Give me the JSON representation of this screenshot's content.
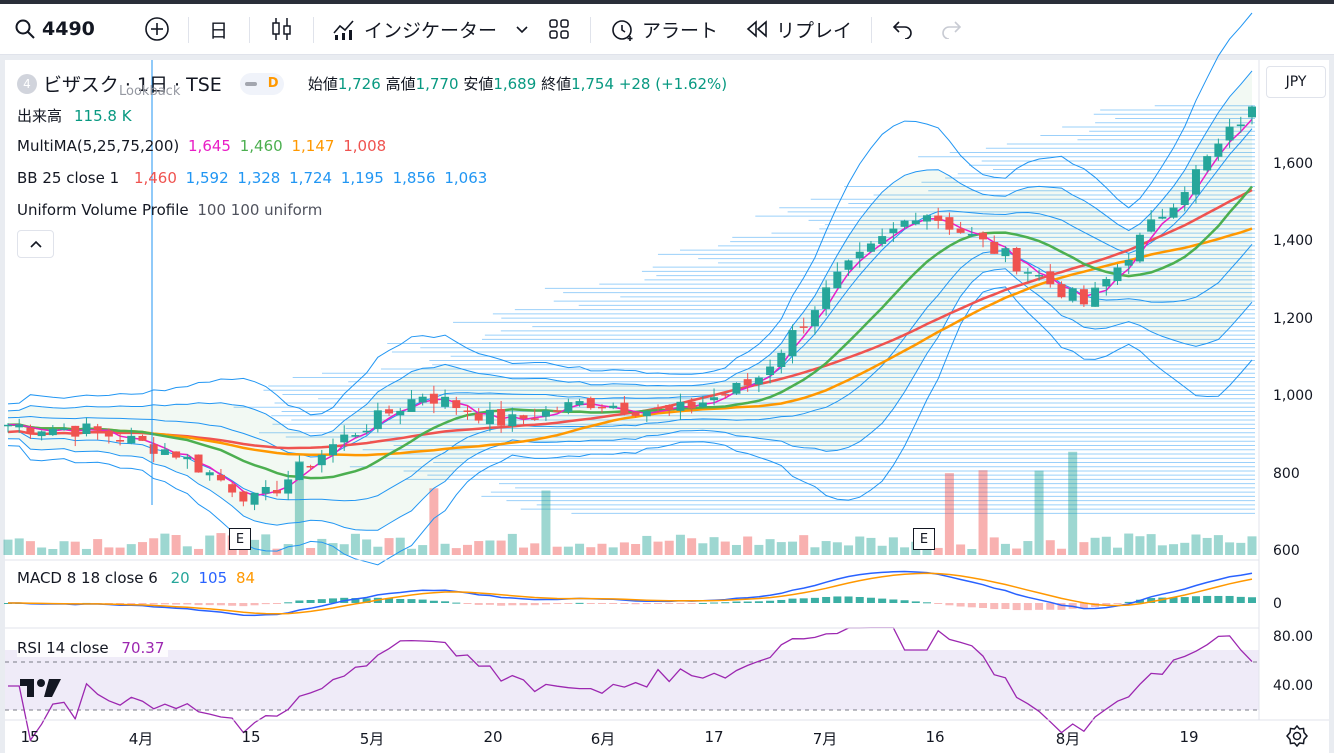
{
  "toolbar": {
    "symbol": "4490",
    "interval": "日",
    "indicators_label": "インジケーター",
    "alert_label": "アラート",
    "replay_label": "リプレイ"
  },
  "legend": {
    "badge": "4",
    "title": "ビザスク · 1日 · TSE",
    "lookback": "Lookback",
    "d_badge": "D",
    "open_label": "始値",
    "open": "1,726",
    "high_label": "高値",
    "high": "1,770",
    "low_label": "安値",
    "low": "1,689",
    "close_label": "終値",
    "close": "1,754",
    "change": "+28 (+1.62%)",
    "volume_label": "出来高",
    "volume": "115.8 K",
    "multima_label": "MultiMA(5,25,75,200)",
    "ma5": "1,645",
    "ma25": "1,460",
    "ma75": "1,147",
    "ma200": "1,008",
    "bb_label": "BB 25 close 1",
    "bb1": "1,460",
    "bb2": "1,592",
    "bb3": "1,328",
    "bb4": "1,724",
    "bb5": "1,195",
    "bb6": "1,856",
    "bb7": "1,063",
    "uvp_label": "Uniform Volume Profile",
    "uvp_params": "100 100 uniform",
    "collapse_icon": "chevron-up-icon"
  },
  "macd": {
    "label": "MACD 8 18 close 6",
    "v1": "20",
    "v2": "105",
    "v3": "84"
  },
  "rsi": {
    "label": "RSI 14 close",
    "value": "70.37"
  },
  "currency": "JPY",
  "price_axis": [
    "1,600",
    "1,400",
    "1,200",
    "1,000",
    "800",
    "600"
  ],
  "macd_axis": "0",
  "rsi_axis": [
    "80.00",
    "40.00"
  ],
  "x_axis": [
    "15",
    "4月",
    "15",
    "5月",
    "20",
    "6月",
    "17",
    "7月",
    "16",
    "8月",
    "19"
  ],
  "earnings_marker": "E",
  "colors": {
    "up": "#26a69a",
    "down": "#ef5350",
    "ma5": "#e91ec6",
    "ma25": "#4caf50",
    "ma75": "#ff9800",
    "ma200": "#ef5350",
    "bb": "#2196f3",
    "rsi": "#9c27b0"
  },
  "chart_data": {
    "type": "candlestick",
    "title": "ビザスク · 1日 · TSE",
    "ylim": [
      600,
      1800
    ],
    "last_bar": {
      "open": 1726,
      "high": 1770,
      "low": 1689,
      "close": 1754,
      "volume": "115.8 K"
    },
    "trend_close": [
      {
        "x": "3月15日",
        "y": 930
      },
      {
        "x": "4月1日",
        "y": 915
      },
      {
        "x": "4月15日",
        "y": 860
      },
      {
        "x": "5月1日",
        "y": 730
      },
      {
        "x": "5月20日",
        "y": 890
      },
      {
        "x": "5月28日",
        "y": 1010
      },
      {
        "x": "6月1日",
        "y": 935
      },
      {
        "x": "6月17日",
        "y": 990
      },
      {
        "x": "7月1日",
        "y": 960
      },
      {
        "x": "7月16日",
        "y": 1040
      },
      {
        "x": "7月20日",
        "y": 1310
      },
      {
        "x": "7月29日",
        "y": 1490
      },
      {
        "x": "8月1日",
        "y": 1370
      },
      {
        "x": "8月8日",
        "y": 1240
      },
      {
        "x": "8月19日",
        "y": 1500
      },
      {
        "x": "8月26日",
        "y": 1754
      }
    ],
    "indicators": {
      "MultiMA": {
        "5": 1645,
        "25": 1460,
        "75": 1147,
        "200": 1008
      },
      "BB": [
        1460,
        1592,
        1328,
        1724,
        1195,
        1856,
        1063
      ],
      "MACD": [
        20,
        105,
        84
      ],
      "RSI": 70.37
    }
  }
}
